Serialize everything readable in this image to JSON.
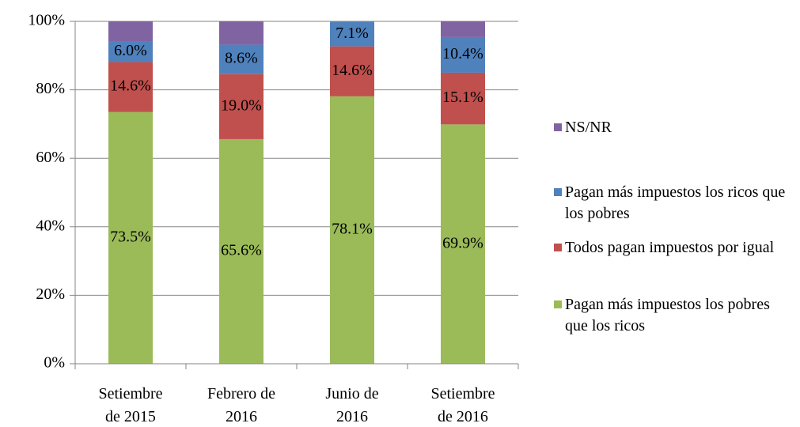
{
  "chart_data": {
    "type": "stacked-bar",
    "categories": [
      "Setiembre de 2015",
      "Febrero de 2016",
      "Junio de 2016",
      "Setiembre de 2016"
    ],
    "series": [
      {
        "name": "Pagan más impuestos los pobres que los ricos",
        "color": "#9bbb59",
        "values": [
          73.5,
          65.6,
          78.1,
          69.9
        ],
        "value_labels": [
          "73.5%",
          "65.6%",
          "78.1%",
          "69.9%"
        ]
      },
      {
        "name": "Todos pagan impuestos por igual",
        "color": "#c0504d",
        "values": [
          14.6,
          19.0,
          14.6,
          15.1
        ],
        "value_labels": [
          "14.6%",
          "19.0%",
          "14.6%",
          "15.1%"
        ]
      },
      {
        "name": "Pagan más impuestos los ricos que los pobres",
        "color": "#4f81bd",
        "values": [
          6.0,
          8.6,
          7.1,
          10.4
        ],
        "value_labels": [
          "6.0%",
          "8.6%",
          "7.1%",
          "10.4%"
        ]
      },
      {
        "name": "NS/NR",
        "color": "#8064a2",
        "values": [
          5.9,
          6.8,
          0.2,
          4.6
        ]
      }
    ],
    "ylim": [
      0,
      100
    ],
    "yticks": [
      {
        "value": 0,
        "label": "0%"
      },
      {
        "value": 20,
        "label": "20%"
      },
      {
        "value": 40,
        "label": "40%"
      },
      {
        "value": 60,
        "label": "60%"
      },
      {
        "value": 80,
        "label": "80%"
      },
      {
        "value": 100,
        "label": "100%"
      }
    ],
    "grid": true,
    "legend": "right"
  }
}
